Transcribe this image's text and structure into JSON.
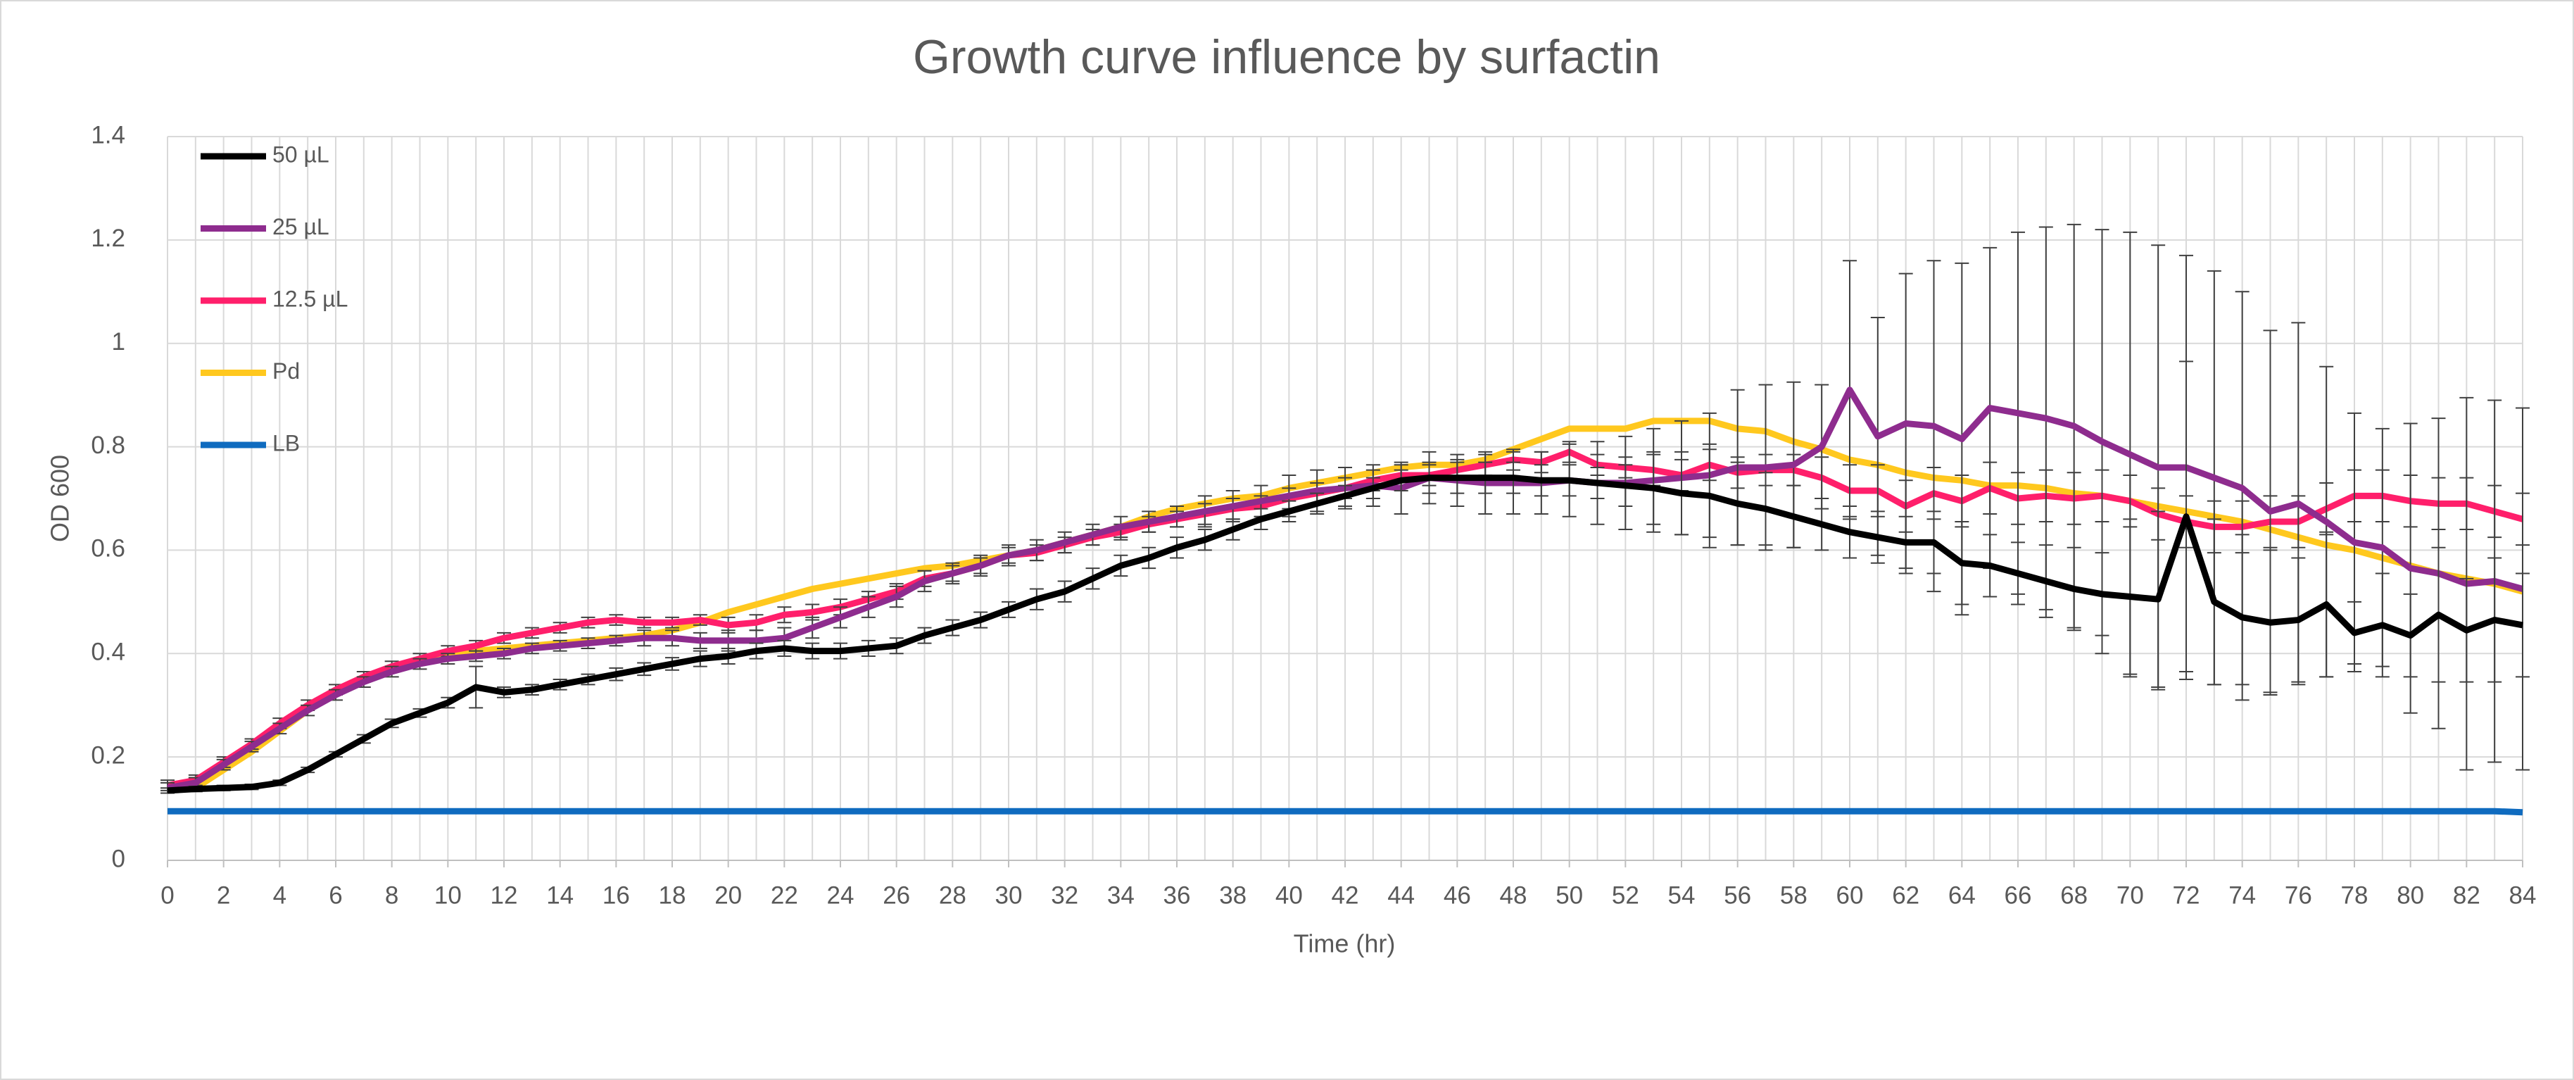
{
  "chart_data": {
    "type": "line",
    "title": "Growth curve influence by surfactin",
    "x_label": "Time (hr)",
    "y_label": "OD 600",
    "x": [
      0,
      1,
      2,
      3,
      4,
      5,
      6,
      7,
      8,
      9,
      10,
      11,
      12,
      13,
      14,
      15,
      16,
      17,
      18,
      19,
      20,
      21,
      22,
      23,
      24,
      25,
      26,
      27,
      28,
      29,
      30,
      31,
      32,
      33,
      34,
      35,
      36,
      37,
      38,
      39,
      40,
      41,
      42,
      43,
      44,
      45,
      46,
      47,
      48,
      49,
      50,
      51,
      52,
      53,
      54,
      55,
      56,
      57,
      58,
      59,
      60,
      61,
      62,
      63,
      64,
      65,
      66,
      67,
      68,
      69,
      70,
      71,
      72,
      73,
      74,
      75,
      76,
      77,
      78,
      79,
      80,
      81,
      82,
      83,
      84
    ],
    "xlim": [
      0,
      84
    ],
    "xticks": [
      0,
      2,
      4,
      6,
      8,
      10,
      12,
      14,
      16,
      18,
      20,
      22,
      24,
      26,
      28,
      30,
      32,
      34,
      36,
      38,
      40,
      42,
      44,
      46,
      48,
      50,
      52,
      54,
      56,
      58,
      60,
      62,
      64,
      66,
      68,
      70,
      72,
      74,
      76,
      78,
      80,
      82,
      84
    ],
    "ylim": [
      0,
      1.4
    ],
    "yticks": [
      0,
      0.2,
      0.4,
      0.6,
      0.8,
      1,
      1.2,
      1.4
    ],
    "grid": true,
    "legend": "upper left",
    "series": [
      {
        "name": "50 µL",
        "color": "#000000",
        "values": [
          0.135,
          0.138,
          0.14,
          0.142,
          0.15,
          0.175,
          0.205,
          0.235,
          0.265,
          0.285,
          0.305,
          0.335,
          0.325,
          0.33,
          0.34,
          0.35,
          0.36,
          0.37,
          0.38,
          0.39,
          0.395,
          0.405,
          0.41,
          0.405,
          0.405,
          0.41,
          0.415,
          0.435,
          0.45,
          0.465,
          0.485,
          0.505,
          0.52,
          0.545,
          0.57,
          0.585,
          0.605,
          0.62,
          0.64,
          0.66,
          0.675,
          0.69,
          0.705,
          0.72,
          0.735,
          0.74,
          0.74,
          0.74,
          0.74,
          0.735,
          0.735,
          0.73,
          0.725,
          0.72,
          0.71,
          0.705,
          0.69,
          0.68,
          0.665,
          0.65,
          0.635,
          0.625,
          0.615,
          0.615,
          0.575,
          0.57,
          0.555,
          0.54,
          0.525,
          0.515,
          0.51,
          0.505,
          0.665,
          0.5,
          0.47,
          0.46,
          0.465,
          0.495,
          0.44,
          0.455,
          0.435,
          0.475,
          0.445,
          0.465,
          0.455
        ],
        "errors": [
          0.005,
          0.005,
          0.005,
          0.005,
          0.005,
          0.005,
          0.005,
          0.008,
          0.008,
          0.008,
          0.01,
          0.04,
          0.01,
          0.01,
          0.01,
          0.01,
          0.012,
          0.012,
          0.012,
          0.015,
          0.015,
          0.015,
          0.015,
          0.015,
          0.015,
          0.015,
          0.015,
          0.015,
          0.015,
          0.015,
          0.015,
          0.02,
          0.02,
          0.02,
          0.02,
          0.02,
          0.02,
          0.02,
          0.02,
          0.02,
          0.02,
          0.02,
          0.02,
          0.02,
          0.02,
          0.03,
          0.03,
          0.03,
          0.03,
          0.03,
          0.03,
          0.03,
          0.04,
          0.07,
          0.08,
          0.1,
          0.08,
          0.07,
          0.06,
          0.05,
          0.05,
          0.05,
          0.05,
          0.06,
          0.08,
          0.06,
          0.06,
          0.07,
          0.08,
          0.08,
          0.15,
          0.17,
          0.3,
          0.16,
          0.16,
          0.14,
          0.12,
          0.14,
          0.06,
          0.1,
          0.08,
          0.13,
          0.1,
          0.12,
          0.1
        ]
      },
      {
        "name": "25 µL",
        "color": "#8e2c8e",
        "values": [
          0.14,
          0.15,
          0.185,
          0.22,
          0.255,
          0.29,
          0.32,
          0.345,
          0.365,
          0.38,
          0.39,
          0.395,
          0.4,
          0.41,
          0.415,
          0.42,
          0.425,
          0.43,
          0.43,
          0.425,
          0.425,
          0.425,
          0.43,
          0.45,
          0.47,
          0.49,
          0.51,
          0.54,
          0.555,
          0.57,
          0.59,
          0.6,
          0.615,
          0.63,
          0.645,
          0.655,
          0.665,
          0.675,
          0.685,
          0.695,
          0.705,
          0.715,
          0.72,
          0.725,
          0.72,
          0.74,
          0.735,
          0.73,
          0.73,
          0.73,
          0.735,
          0.73,
          0.73,
          0.735,
          0.74,
          0.745,
          0.76,
          0.76,
          0.765,
          0.8,
          0.91,
          0.82,
          0.845,
          0.84,
          0.815,
          0.875,
          0.865,
          0.855,
          0.84,
          0.81,
          0.785,
          0.76,
          0.76,
          0.74,
          0.72,
          0.675,
          0.69,
          0.655,
          0.615,
          0.605,
          0.565,
          0.555,
          0.535,
          0.54,
          0.525
        ],
        "errors": [
          0.01,
          0.01,
          0.01,
          0.01,
          0.01,
          0.01,
          0.01,
          0.01,
          0.01,
          0.01,
          0.01,
          0.01,
          0.01,
          0.01,
          0.01,
          0.01,
          0.01,
          0.015,
          0.015,
          0.015,
          0.02,
          0.02,
          0.02,
          0.02,
          0.02,
          0.02,
          0.02,
          0.02,
          0.02,
          0.02,
          0.02,
          0.02,
          0.02,
          0.02,
          0.02,
          0.02,
          0.02,
          0.03,
          0.03,
          0.03,
          0.04,
          0.04,
          0.04,
          0.04,
          0.05,
          0.05,
          0.05,
          0.06,
          0.06,
          0.06,
          0.07,
          0.08,
          0.09,
          0.1,
          0.11,
          0.12,
          0.15,
          0.16,
          0.16,
          0.12,
          0.25,
          0.23,
          0.29,
          0.32,
          0.34,
          0.31,
          0.35,
          0.37,
          0.39,
          0.41,
          0.43,
          0.43,
          0.41,
          0.4,
          0.38,
          0.35,
          0.35,
          0.3,
          0.25,
          0.23,
          0.28,
          0.3,
          0.36,
          0.35,
          0.35
        ]
      },
      {
        "name": "12.5 µL",
        "color": "#ff1f6b",
        "values": [
          0.145,
          0.155,
          0.19,
          0.225,
          0.265,
          0.3,
          0.33,
          0.355,
          0.375,
          0.39,
          0.405,
          0.415,
          0.43,
          0.44,
          0.45,
          0.46,
          0.465,
          0.46,
          0.46,
          0.465,
          0.455,
          0.46,
          0.475,
          0.48,
          0.49,
          0.505,
          0.52,
          0.545,
          0.555,
          0.57,
          0.59,
          0.595,
          0.61,
          0.625,
          0.635,
          0.65,
          0.66,
          0.67,
          0.68,
          0.685,
          0.7,
          0.71,
          0.72,
          0.735,
          0.745,
          0.745,
          0.755,
          0.765,
          0.775,
          0.77,
          0.79,
          0.765,
          0.76,
          0.755,
          0.745,
          0.765,
          0.75,
          0.755,
          0.755,
          0.74,
          0.715,
          0.715,
          0.685,
          0.71,
          0.695,
          0.72,
          0.7,
          0.705,
          0.7,
          0.705,
          0.695,
          0.67,
          0.655,
          0.645,
          0.645,
          0.655,
          0.655,
          0.68,
          0.705,
          0.705,
          0.695,
          0.69,
          0.69,
          0.675,
          0.66
        ],
        "errors": [
          0.01,
          0.01,
          0.01,
          0.01,
          0.01,
          0.01,
          0.01,
          0.01,
          0.01,
          0.01,
          0.01,
          0.01,
          0.01,
          0.01,
          0.01,
          0.01,
          0.01,
          0.01,
          0.01,
          0.01,
          0.015,
          0.015,
          0.015,
          0.015,
          0.015,
          0.015,
          0.015,
          0.015,
          0.015,
          0.015,
          0.015,
          0.015,
          0.015,
          0.015,
          0.015,
          0.015,
          0.015,
          0.02,
          0.02,
          0.02,
          0.02,
          0.02,
          0.02,
          0.02,
          0.02,
          0.02,
          0.02,
          0.02,
          0.02,
          0.02,
          0.02,
          0.02,
          0.02,
          0.03,
          0.03,
          0.03,
          0.03,
          0.03,
          0.03,
          0.04,
          0.05,
          0.05,
          0.05,
          0.05,
          0.05,
          0.05,
          0.05,
          0.05,
          0.05,
          0.05,
          0.05,
          0.05,
          0.05,
          0.05,
          0.05,
          0.05,
          0.05,
          0.05,
          0.05,
          0.05,
          0.05,
          0.05,
          0.05,
          0.05,
          0.05
        ]
      },
      {
        "name": "Pd",
        "color": "#ffc81e",
        "values": [
          0.135,
          0.14,
          0.175,
          0.21,
          0.25,
          0.29,
          0.325,
          0.35,
          0.37,
          0.385,
          0.395,
          0.405,
          0.41,
          0.415,
          0.42,
          0.425,
          0.43,
          0.435,
          0.445,
          0.46,
          0.48,
          0.495,
          0.51,
          0.525,
          0.535,
          0.545,
          0.555,
          0.565,
          0.57,
          0.58,
          0.59,
          0.6,
          0.615,
          0.63,
          0.645,
          0.665,
          0.68,
          0.69,
          0.7,
          0.705,
          0.72,
          0.73,
          0.74,
          0.75,
          0.76,
          0.765,
          0.765,
          0.775,
          0.795,
          0.815,
          0.835,
          0.835,
          0.835,
          0.85,
          0.85,
          0.85,
          0.835,
          0.83,
          0.81,
          0.795,
          0.775,
          0.765,
          0.75,
          0.74,
          0.735,
          0.725,
          0.725,
          0.72,
          0.71,
          0.705,
          0.695,
          0.685,
          0.675,
          0.665,
          0.655,
          0.64,
          0.625,
          0.61,
          0.6,
          0.585,
          0.57,
          0.555,
          0.545,
          0.535,
          0.52
        ]
      },
      {
        "name": "LB",
        "color": "#0f6bbf",
        "values": [
          0.095,
          0.095,
          0.095,
          0.095,
          0.095,
          0.095,
          0.095,
          0.095,
          0.095,
          0.095,
          0.095,
          0.095,
          0.095,
          0.095,
          0.095,
          0.095,
          0.095,
          0.095,
          0.095,
          0.095,
          0.095,
          0.095,
          0.095,
          0.095,
          0.095,
          0.095,
          0.095,
          0.095,
          0.095,
          0.095,
          0.095,
          0.095,
          0.095,
          0.095,
          0.095,
          0.095,
          0.095,
          0.095,
          0.095,
          0.095,
          0.095,
          0.095,
          0.095,
          0.095,
          0.095,
          0.095,
          0.095,
          0.095,
          0.095,
          0.095,
          0.095,
          0.095,
          0.095,
          0.095,
          0.095,
          0.095,
          0.095,
          0.095,
          0.095,
          0.095,
          0.095,
          0.095,
          0.095,
          0.095,
          0.095,
          0.095,
          0.095,
          0.095,
          0.095,
          0.095,
          0.095,
          0.095,
          0.095,
          0.095,
          0.095,
          0.095,
          0.095,
          0.095,
          0.095,
          0.095,
          0.095,
          0.095,
          0.095,
          0.095,
          0.093
        ]
      }
    ]
  }
}
